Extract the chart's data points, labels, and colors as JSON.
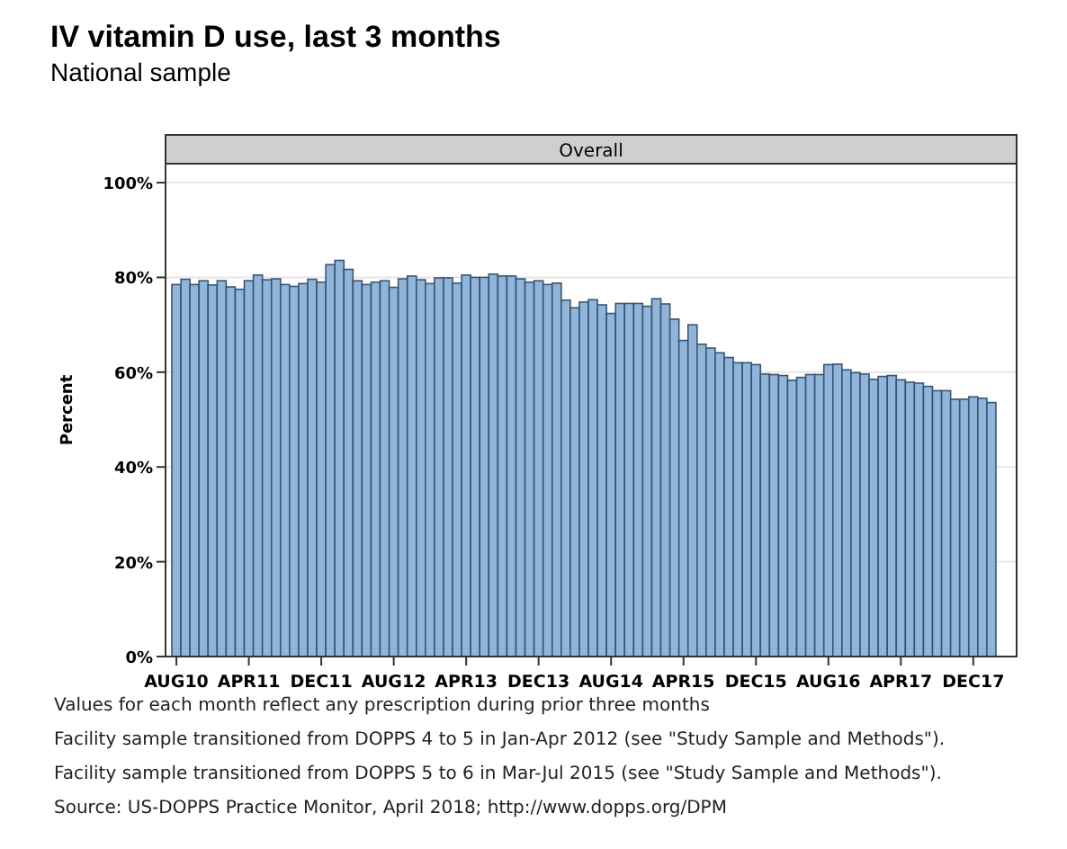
{
  "chart_data": {
    "type": "bar",
    "title": "IV vitamin D use, last 3 months",
    "subtitle": "National sample",
    "ylabel": "Percent",
    "categories": [
      "AUG10",
      null,
      null,
      null,
      null,
      null,
      null,
      null,
      "APR11",
      null,
      null,
      null,
      null,
      null,
      null,
      null,
      "DEC11",
      null,
      null,
      null,
      null,
      null,
      null,
      null,
      "AUG12",
      null,
      null,
      null,
      null,
      null,
      null,
      null,
      "APR13",
      null,
      null,
      null,
      null,
      null,
      null,
      null,
      "DEC13",
      null,
      null,
      null,
      null,
      null,
      null,
      null,
      "AUG14",
      null,
      null,
      null,
      null,
      null,
      null,
      null,
      "APR15",
      null,
      null,
      null,
      null,
      null,
      null,
      null,
      "DEC15",
      null,
      null,
      null,
      null,
      null,
      null,
      null,
      "AUG16",
      null,
      null,
      null,
      null,
      null,
      null,
      null,
      "APR17",
      null,
      null,
      null,
      null,
      null,
      null,
      null,
      "DEC17",
      null,
      null
    ],
    "values": [
      78.5,
      79.6,
      78.5,
      79.3,
      78.4,
      79.3,
      78,
      77.5,
      79.3,
      80.5,
      79.5,
      79.7,
      78.5,
      78.1,
      78.7,
      79.6,
      79,
      82.7,
      83.6,
      81.7,
      79.3,
      78.5,
      79,
      79.3,
      77.9,
      79.7,
      80.3,
      79.5,
      78.7,
      79.9,
      79.9,
      78.8,
      80.5,
      80,
      80,
      80.7,
      80.3,
      80.3,
      79.7,
      79,
      79.3,
      78.5,
      78.8,
      75.2,
      73.6,
      74.8,
      75.3,
      74.2,
      72.4,
      74.5,
      74.5,
      74.5,
      73.9,
      75.5,
      74.4,
      71.2,
      66.7,
      70,
      65.9,
      65.1,
      64.1,
      63.1,
      62,
      62,
      61.6,
      59.6,
      59.5,
      59.3,
      58.3,
      58.9,
      59.5,
      59.5,
      61.6,
      61.7,
      60.5,
      59.9,
      59.6,
      58.5,
      59.1,
      59.3,
      58.4,
      57.9,
      57.7,
      57,
      56.1,
      56.1,
      54.3,
      54.3,
      54.8,
      54.5,
      53.6
    ],
    "color": "#8fb5db",
    "ylim": [
      0,
      104
    ],
    "yticks": [
      {
        "value": 0,
        "label": "0%"
      },
      {
        "value": 20,
        "label": "20%"
      },
      {
        "value": 40,
        "label": "40%"
      },
      {
        "value": 60,
        "label": "60%"
      },
      {
        "value": 80,
        "label": "80%"
      },
      {
        "value": 100,
        "label": "100%"
      }
    ],
    "grid": "y",
    "annotations": [
      "Overall",
      "Values for each month reflect any prescription during prior three months",
      "Facility sample transitioned from DOPPS 4 to 5 in Jan-Apr 2012 (see \"Study Sample and Methods\").",
      "Facility sample transitioned from DOPPS 5 to 6 in Mar-Jul 2015 (see \"Study Sample and Methods\").",
      "Source: US-DOPPS Practice Monitor, April 2018; http://www.dopps.org/DPM"
    ]
  }
}
